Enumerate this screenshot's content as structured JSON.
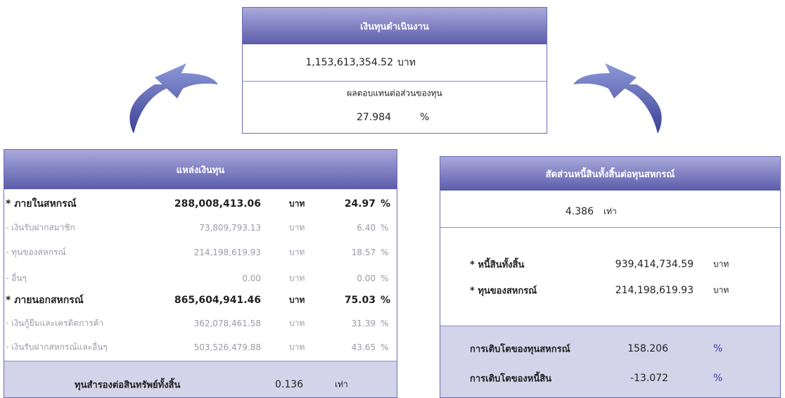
{
  "top_box": {
    "title": "เงินทุนดำเนินงาน",
    "amount": "1,153,613,354.52",
    "amount_unit": "บาท",
    "return_label": "ผลตอบแทนต่อส่วนของทุน",
    "return_value": "27.984",
    "return_unit": "%"
  },
  "funding_sources": {
    "title": "แหล่งเงินทุน",
    "rows": [
      {
        "label": "* ภายในสหกรณ์",
        "amount": "288,008,413.06",
        "unit": "บาท",
        "percent": "24.97",
        "percent_unit": "%"
      },
      {
        "label": "- เงินรับฝากสมาชิก",
        "amount": "73,809,793.13",
        "unit": "บาท",
        "percent": "6.40",
        "percent_unit": "%"
      },
      {
        "label": "- ทุนของสหกรณ์",
        "amount": "214,198,619.93",
        "unit": "บาท",
        "percent": "18.57",
        "percent_unit": "%"
      },
      {
        "label": "- อื่นๆ",
        "amount": "0.00",
        "unit": "บาท",
        "percent": "0.00",
        "percent_unit": "%"
      },
      {
        "label": "* ภายนอกสหกรณ์",
        "amount": "865,604,941.46",
        "unit": "บาท",
        "percent": "75.03",
        "percent_unit": "%"
      },
      {
        "label": "- เงินกู้ยืมและเครดิตการค้า",
        "amount": "362,078,461.58",
        "unit": "บาท",
        "percent": "31.39",
        "percent_unit": "%"
      },
      {
        "label": "- เงินรับฝากสหกรณ์และอื่นๆ",
        "amount": "503,526,479.88",
        "unit": "บาท",
        "percent": "43.65",
        "percent_unit": "%"
      }
    ],
    "footer_label": "ทุนสำรองต่อสินทรัพย์ทั้งสิ้น",
    "footer_value": "0.136",
    "footer_unit": "เท่า"
  },
  "debt_ratio": {
    "title": "สัดส่วนหนี้สินทั้งสิ้นต่อทุนสหกรณ์",
    "ratio_value": "4.386",
    "ratio_unit": "เท่า",
    "rows": [
      {
        "label": "* หนี้สินทั้งสิ้น",
        "amount": "939,414,734.59",
        "unit": "บาท"
      },
      {
        "label": "* ทุนของสหกรณ์",
        "amount": "214,198,619.93",
        "unit": "บาท"
      }
    ],
    "growth": [
      {
        "label": "การเติบโตของทุนสหกรณ์",
        "value": "158.206",
        "unit": "%"
      },
      {
        "label": "การเติบโตของหนี้สิน",
        "value": "-13.072",
        "unit": "%"
      }
    ]
  }
}
